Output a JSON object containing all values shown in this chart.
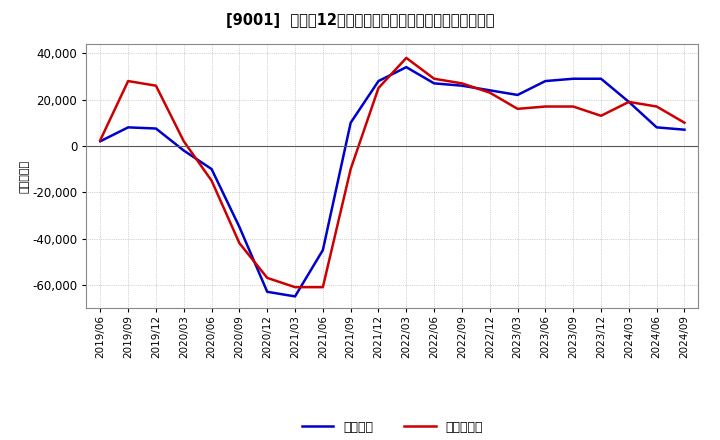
{
  "title": "[9001]  利益だ12か月移動合計の対前年同期増減額の推移",
  "ylabel": "（百万円）",
  "x_labels": [
    "2019/06",
    "2019/09",
    "2019/12",
    "2020/03",
    "2020/06",
    "2020/09",
    "2020/12",
    "2021/03",
    "2021/06",
    "2021/09",
    "2021/12",
    "2022/03",
    "2022/06",
    "2022/09",
    "2022/12",
    "2023/03",
    "2023/06",
    "2023/09",
    "2023/12",
    "2024/03",
    "2024/06",
    "2024/09"
  ],
  "keijo_rieki": [
    2000,
    8000,
    7500,
    -2000,
    -10000,
    -35000,
    -63000,
    -65000,
    -45000,
    10000,
    28000,
    34000,
    27000,
    26000,
    24000,
    22000,
    28000,
    29000,
    29000,
    19000,
    8000,
    7000
  ],
  "junrieki": [
    2500,
    28000,
    26000,
    2000,
    -15000,
    -42000,
    -57000,
    -61000,
    -61000,
    -10000,
    25000,
    38000,
    29000,
    27000,
    23000,
    16000,
    17000,
    17000,
    13000,
    19000,
    17000,
    10000
  ],
  "keijo_color": "#0000cc",
  "junrieki_color": "#cc0000",
  "background_color": "#ffffff",
  "grid_color": "#aaaaaa",
  "ylim": [
    -70000,
    44000
  ],
  "yticks": [
    -60000,
    -40000,
    -20000,
    0,
    20000,
    40000
  ],
  "legend_keijo": "経常利益",
  "legend_junrieki": "当期純利益",
  "line_width": 1.8
}
